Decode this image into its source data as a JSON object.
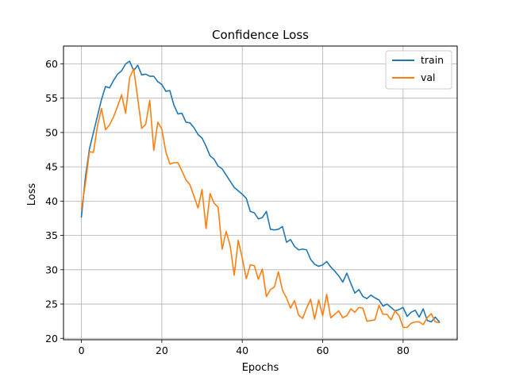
{
  "chart_data": {
    "type": "line",
    "title": "Confidence Loss",
    "xlabel": "Epochs",
    "ylabel": "Loss",
    "xlim": [
      -4.45,
      93.45
    ],
    "ylim": [
      19.8,
      62.6
    ],
    "xticks": [
      0,
      20,
      40,
      60,
      80
    ],
    "yticks": [
      20,
      25,
      30,
      35,
      40,
      45,
      50,
      55,
      60
    ],
    "grid": true,
    "legend_position": "top-right",
    "colors": {
      "train": "#1f77b4",
      "val": "#ff7f0e"
    },
    "series": [
      {
        "name": "train",
        "color": "#1f77b4",
        "x": [
          0,
          1,
          2,
          3,
          4,
          5,
          6,
          7,
          8,
          9,
          10,
          11,
          12,
          13,
          14,
          15,
          16,
          17,
          18,
          19,
          20,
          21,
          22,
          23,
          24,
          25,
          26,
          27,
          28,
          29,
          30,
          31,
          32,
          33,
          34,
          35,
          36,
          37,
          38,
          39,
          40,
          41,
          42,
          43,
          44,
          45,
          46,
          47,
          48,
          49,
          50,
          51,
          52,
          53,
          54,
          55,
          56,
          57,
          58,
          59,
          60,
          61,
          62,
          63,
          64,
          65,
          66,
          67,
          68,
          69,
          70,
          71,
          72,
          73,
          74,
          75,
          76,
          77,
          78,
          79,
          80,
          81,
          82,
          83,
          84,
          85,
          86,
          87,
          88,
          89
        ],
        "values": [
          37.7,
          43.5,
          47.6,
          50.0,
          52.4,
          54.8,
          56.7,
          56.5,
          57.6,
          58.5,
          59.0,
          60.0,
          60.4,
          59.0,
          59.8,
          58.4,
          58.5,
          58.2,
          58.2,
          57.4,
          57.0,
          56.0,
          56.1,
          54.0,
          52.7,
          52.8,
          51.5,
          51.4,
          50.7,
          49.7,
          49.2,
          48.0,
          46.6,
          46.1,
          45.1,
          44.7,
          43.8,
          42.9,
          42.0,
          41.5,
          41.0,
          40.4,
          38.5,
          38.3,
          37.4,
          37.6,
          38.5,
          35.9,
          35.8,
          35.9,
          36.3,
          34.0,
          34.4,
          33.4,
          32.9,
          33.0,
          32.9,
          31.5,
          30.8,
          30.5,
          30.7,
          31.2,
          30.4,
          29.8,
          29.1,
          28.2,
          29.5,
          28.0,
          26.6,
          27.1,
          26.1,
          25.8,
          26.3,
          25.9,
          25.6,
          24.7,
          25.0,
          24.5,
          24.0,
          24.2,
          24.5,
          23.2,
          23.8,
          24.1,
          23.1,
          24.3,
          22.6,
          22.4,
          23.1,
          22.4
        ]
      },
      {
        "name": "val",
        "color": "#ff7f0e",
        "x": [
          0,
          1,
          2,
          3,
          4,
          5,
          6,
          7,
          8,
          9,
          10,
          11,
          12,
          13,
          14,
          15,
          16,
          17,
          18,
          19,
          20,
          21,
          22,
          23,
          24,
          25,
          26,
          27,
          28,
          29,
          30,
          31,
          32,
          33,
          34,
          35,
          36,
          37,
          38,
          39,
          40,
          41,
          42,
          43,
          44,
          45,
          46,
          47,
          48,
          49,
          50,
          51,
          52,
          53,
          54,
          55,
          56,
          57,
          58,
          59,
          60,
          61,
          62,
          63,
          64,
          65,
          66,
          67,
          68,
          69,
          70,
          71,
          72,
          73,
          74,
          75,
          76,
          77,
          78,
          79,
          80,
          81,
          82,
          83,
          84,
          85,
          86,
          87,
          88,
          89
        ],
        "values": [
          38.8,
          42.6,
          47.2,
          47.1,
          51.0,
          53.5,
          50.4,
          51.1,
          52.3,
          53.8,
          55.5,
          52.8,
          58.0,
          59.3,
          55.0,
          50.6,
          51.2,
          54.7,
          47.4,
          51.5,
          50.5,
          47.2,
          45.4,
          45.6,
          45.6,
          44.4,
          43.1,
          42.4,
          40.7,
          39.0,
          41.7,
          36.0,
          41.1,
          39.7,
          39.1,
          33.0,
          35.6,
          33.5,
          29.2,
          34.3,
          31.7,
          28.7,
          30.7,
          30.6,
          28.6,
          30.1,
          26.1,
          27.1,
          27.5,
          29.7,
          27.0,
          25.9,
          24.4,
          25.5,
          23.4,
          22.9,
          24.4,
          25.7,
          22.8,
          25.6,
          23.3,
          26.4,
          23.0,
          23.5,
          24.0,
          23.0,
          23.3,
          24.3,
          23.8,
          24.5,
          24.4,
          22.5,
          22.6,
          22.7,
          24.8,
          23.5,
          23.5,
          22.7,
          24.0,
          23.3,
          21.6,
          21.6,
          22.2,
          22.4,
          22.4,
          22.0,
          23.0,
          23.6,
          22.4,
          22.3
        ]
      }
    ]
  }
}
